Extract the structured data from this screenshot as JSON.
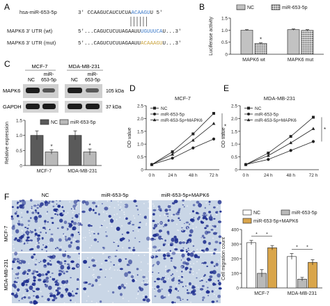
{
  "panel_labels": [
    "A",
    "B",
    "C",
    "D",
    "E",
    "F"
  ],
  "panelA": {
    "mirna_label": "hsa-miR-653-5p",
    "mirna_prefix": "3' CCAAGUCAUCUCUA",
    "mirna_seed": "ACAAGU",
    "mirna_suffix": "U 5'",
    "wt_label": "MAPK6  3' UTR (wt)",
    "wt_prefix": "5'...CAGUCUCUUAGAAUU",
    "wt_site": "UGUUUCA",
    "wt_suffix": "U...3'",
    "mut_label": "MAPK6  3' UTR (mut)",
    "mut_prefix": "5'...CAGUCUCUUAGAAUU",
    "mut_site": "ACAAAGU",
    "mut_suffix": "U...3'",
    "colors": {
      "seed": "#3a79c9",
      "mut": "#c9a23a",
      "text": "#222222"
    }
  },
  "panelC_blot": {
    "cell_lines": [
      "MCF-7",
      "MDA-MB-231"
    ],
    "lanes": [
      "NC",
      "miR-\n653-5p",
      "NC",
      "miR-\n653-5p"
    ],
    "lane_nc": "NC",
    "lane_mir_1": "miR-",
    "lane_mir_2": "653-5p",
    "rows": [
      {
        "name": "MAPK6",
        "size": "105 kDa"
      },
      {
        "name": "GAPDH",
        "size": "37 kDa"
      }
    ]
  },
  "panelF_images": {
    "columns": [
      "NC",
      "miR-653-5p",
      "miR-653-5p+MAPK6"
    ],
    "rows": [
      "MCF-7",
      "MDA-MB-231"
    ]
  },
  "chart_data": [
    {
      "id": "B",
      "type": "bar",
      "categories": [
        "MAPK6 wt",
        "MAPK6 mut"
      ],
      "series": [
        {
          "name": "NC",
          "values": [
            1.0,
            1.02
          ],
          "errors": [
            0.02,
            0.03
          ]
        },
        {
          "name": "miR-653-5p",
          "values": [
            0.45,
            0.99
          ],
          "errors": [
            0.02,
            0.03
          ]
        }
      ],
      "ylabel": "Luciferase activity",
      "ylim": [
        0,
        1.5
      ],
      "yticks": [
        "0",
        "0.5",
        "1.0",
        "1.5"
      ],
      "significance": [
        "*",
        ""
      ],
      "legend": "top"
    },
    {
      "id": "C",
      "type": "bar",
      "categories": [
        "MCF-7",
        "MDA-MB-231"
      ],
      "series": [
        {
          "name": "NC",
          "values": [
            1.0,
            1.0
          ],
          "errors": [
            0.15,
            0.15
          ]
        },
        {
          "name": "miR-653-5p",
          "values": [
            0.45,
            0.45
          ],
          "errors": [
            0.07,
            0.1
          ]
        }
      ],
      "ylabel": "Relative expression",
      "ylim": [
        0,
        1.5
      ],
      "yticks": [
        "0",
        "0.5",
        "1.0",
        "1.5"
      ],
      "significance": [
        "*",
        "*"
      ],
      "legend": "top-right"
    },
    {
      "id": "D",
      "type": "line",
      "title": "MCF-7",
      "categories": [
        "0 h",
        "24 h",
        "48 h",
        "72 h"
      ],
      "series": [
        {
          "name": "NC",
          "values": [
            0.2,
            0.7,
            1.4,
            2.2
          ],
          "marker": "square"
        },
        {
          "name": "miR-653-5p",
          "values": [
            0.2,
            0.45,
            0.85,
            1.2
          ],
          "marker": "circle"
        },
        {
          "name": "miR-653-5p+MAPK6",
          "values": [
            0.2,
            0.6,
            1.15,
            1.8
          ],
          "marker": "triangle"
        }
      ],
      "ylabel": "OD value",
      "ylim": [
        0,
        2.5
      ],
      "yticks": [
        "0",
        "0.5",
        "1.0",
        "1.5",
        "2.0",
        "2.5"
      ],
      "significance": "*",
      "legend": "top-left"
    },
    {
      "id": "E",
      "type": "line",
      "title": "MDA-MB-231",
      "categories": [
        "0 h",
        "24 h",
        "48 h",
        "72 h"
      ],
      "series": [
        {
          "name": "NC",
          "values": [
            0.2,
            0.65,
            1.3,
            2.05
          ],
          "marker": "square"
        },
        {
          "name": "miR-653-5p",
          "values": [
            0.2,
            0.4,
            0.75,
            1.1
          ],
          "marker": "circle"
        },
        {
          "name": "miR-653-5p+MAPK6",
          "values": [
            0.2,
            0.55,
            1.05,
            1.6
          ],
          "marker": "triangle"
        }
      ],
      "ylabel": "OD value",
      "ylim": [
        0,
        2.5
      ],
      "yticks": [
        "0",
        "0.5",
        "1.0",
        "1.5",
        "2.0",
        "2.5"
      ],
      "significance": "*",
      "legend": "top-left"
    },
    {
      "id": "F",
      "type": "bar",
      "categories": [
        "MCF-7",
        "MDA-MB-231"
      ],
      "series": [
        {
          "name": "NC",
          "values": [
            310,
            215
          ],
          "errors": [
            15,
            20
          ]
        },
        {
          "name": "miR-653-5p",
          "values": [
            100,
            60
          ],
          "errors": [
            25,
            12
          ]
        },
        {
          "name": "miR-653-5p+MAPK6",
          "values": [
            275,
            175
          ],
          "errors": [
            15,
            18
          ]
        }
      ],
      "ylabel": "Cell migration count",
      "ylim": [
        0,
        400
      ],
      "yticks": [
        "0",
        "100",
        "200",
        "300",
        "400"
      ],
      "significance": [
        "*",
        "*"
      ],
      "legend": "top"
    }
  ],
  "colors": {
    "nc_fill": "#ffffff",
    "mir_fill": "#b9b9b9",
    "mapk6_fill": "#d9a54a",
    "dark_fill": "#5a5a5a",
    "bar_stroke": "#333333",
    "well_bg": "#c9d6e6",
    "cell_dark": "#1f2f8f"
  }
}
